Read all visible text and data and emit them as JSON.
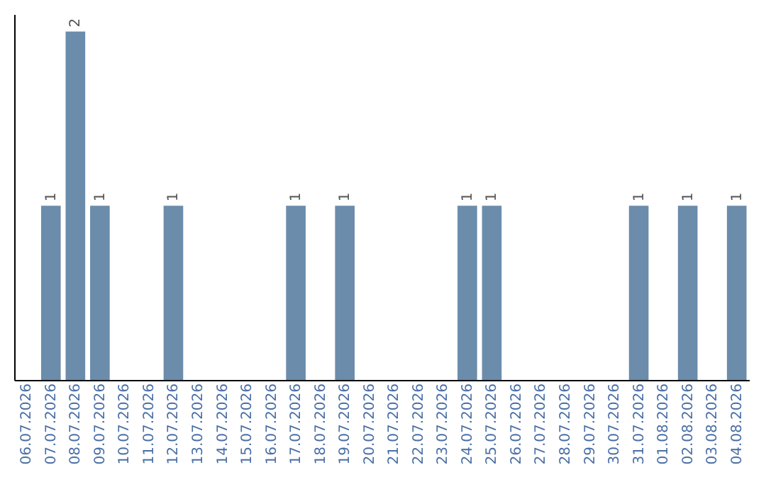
{
  "chart_data": {
    "type": "bar",
    "categories": [
      "06.07.2026",
      "07.07.2026",
      "08.07.2026",
      "09.07.2026",
      "10.07.2026",
      "11.07.2026",
      "12.07.2026",
      "13.07.2026",
      "14.07.2026",
      "15.07.2026",
      "16.07.2026",
      "17.07.2026",
      "18.07.2026",
      "19.07.2026",
      "20.07.2026",
      "21.07.2026",
      "22.07.2026",
      "23.07.2026",
      "24.07.2026",
      "25.07.2026",
      "26.07.2026",
      "27.07.2026",
      "28.07.2026",
      "29.07.2026",
      "30.07.2026",
      "31.07.2026",
      "01.08.2026",
      "02.08.2026",
      "03.08.2026",
      "04.08.2026"
    ],
    "values": [
      0,
      1,
      2,
      1,
      0,
      0,
      1,
      0,
      0,
      0,
      0,
      1,
      0,
      1,
      0,
      0,
      0,
      0,
      1,
      1,
      0,
      0,
      0,
      0,
      0,
      1,
      0,
      1,
      0,
      1
    ],
    "value_labels": [
      null,
      "1",
      "2",
      "1",
      null,
      null,
      "1",
      null,
      null,
      null,
      null,
      "1",
      null,
      "1",
      null,
      null,
      null,
      null,
      "1",
      "1",
      null,
      null,
      null,
      null,
      null,
      "1",
      null,
      "1",
      null,
      "1"
    ],
    "color": "#6b8cab",
    "ylim": [
      0,
      2.1
    ],
    "tick_labels": "x",
    "grid": false
  }
}
